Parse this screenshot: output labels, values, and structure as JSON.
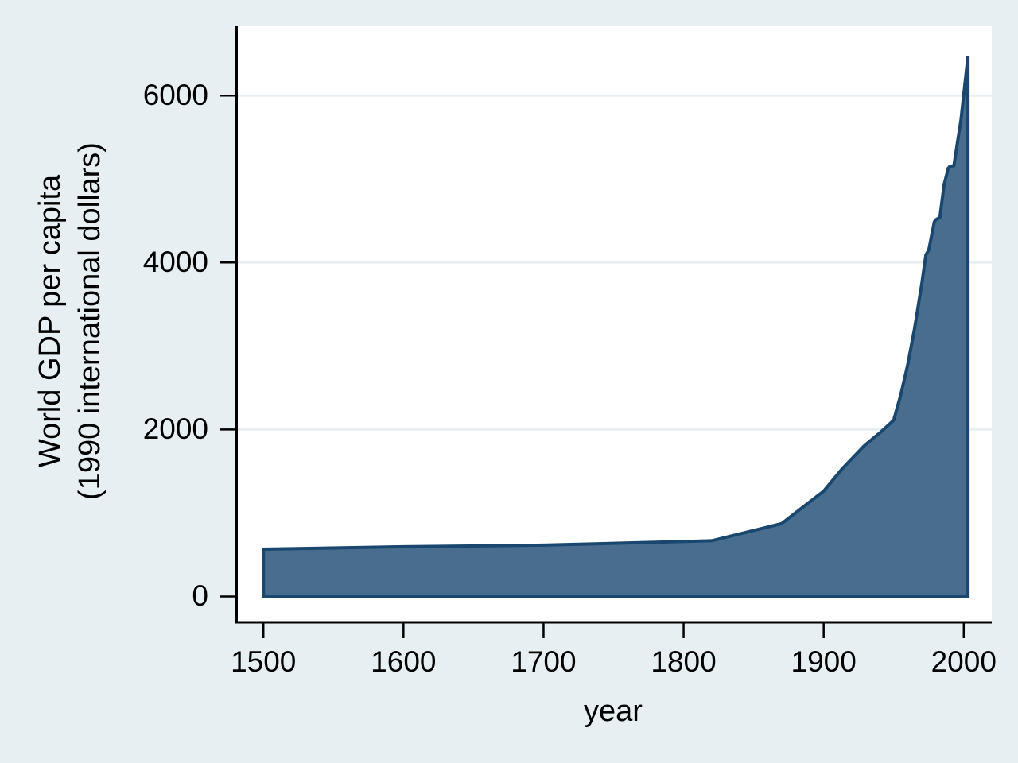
{
  "chart_data": {
    "type": "area",
    "title": "",
    "xlabel": "year",
    "ylabel_line1": "World GDP per capita",
    "ylabel_line2": "(1990 international dollars)",
    "series": [
      {
        "name": "World GDP per capita (1990 international dollars)",
        "points": [
          [
            1500,
            566
          ],
          [
            1600,
            596
          ],
          [
            1700,
            615
          ],
          [
            1820,
            667
          ],
          [
            1870,
            873
          ],
          [
            1900,
            1262
          ],
          [
            1913,
            1526
          ],
          [
            1929,
            1806
          ],
          [
            1940,
            1958
          ],
          [
            1950,
            2111
          ],
          [
            1955,
            2412
          ],
          [
            1960,
            2773
          ],
          [
            1965,
            3217
          ],
          [
            1970,
            3736
          ],
          [
            1973,
            4091
          ],
          [
            1975,
            4150
          ],
          [
            1979,
            4489
          ],
          [
            1980,
            4512
          ],
          [
            1983,
            4542
          ],
          [
            1986,
            4935
          ],
          [
            1989,
            5130
          ],
          [
            1990,
            5150
          ],
          [
            1993,
            5160
          ],
          [
            1996,
            5490
          ],
          [
            1998,
            5709
          ],
          [
            2000,
            6012
          ],
          [
            2003,
            6469
          ]
        ],
        "baseline": 0
      }
    ],
    "x_ticks": [
      1500,
      1600,
      1700,
      1800,
      1900,
      2000
    ],
    "y_ticks": [
      0,
      2000,
      4000,
      6000
    ],
    "gridline_values": [
      2000,
      4000,
      6000
    ],
    "xlim": [
      1480,
      2020
    ],
    "ylim": [
      -300,
      6830
    ],
    "grid": true,
    "legend": "none",
    "colors": {
      "area_fill": "#486d8f",
      "area_stroke": "#1a476f",
      "background": "#e8eff2",
      "plot_background": "#ffffff",
      "gridline": "#e8eff2",
      "axis_line": "#000000",
      "text": "#000000"
    }
  }
}
